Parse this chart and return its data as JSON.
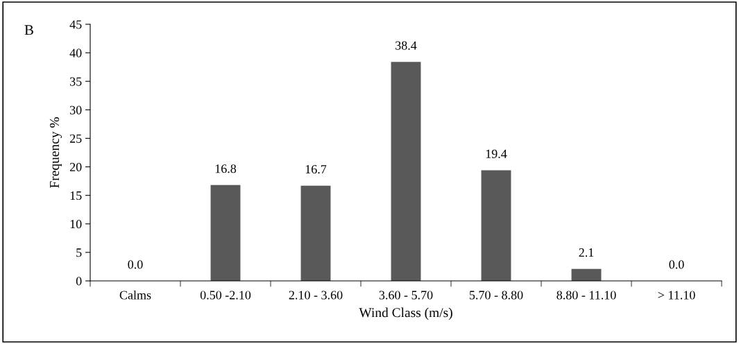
{
  "chart_data": {
    "type": "bar",
    "xlabel": "Wind Class (m/s)",
    "ylabel": "Frequency %",
    "annotations": [
      "B"
    ],
    "categories": [
      "Calms",
      "0.50 -2.10",
      "2.10 - 3.60",
      "3.60 - 5.70",
      "5.70 - 8.80",
      "8.80 - 11.10",
      "> 11.10"
    ],
    "values": [
      0.0,
      16.8,
      16.7,
      38.4,
      19.4,
      2.1,
      0.0
    ],
    "value_labels": [
      "0.0",
      "16.8",
      "16.7",
      "38.4",
      "19.4",
      "2.1",
      "0.0"
    ],
    "color": "#595959",
    "ylim": [
      0,
      45
    ],
    "yticks": [
      0,
      5,
      10,
      15,
      20,
      25,
      30,
      35,
      40,
      45
    ],
    "grid": false
  }
}
